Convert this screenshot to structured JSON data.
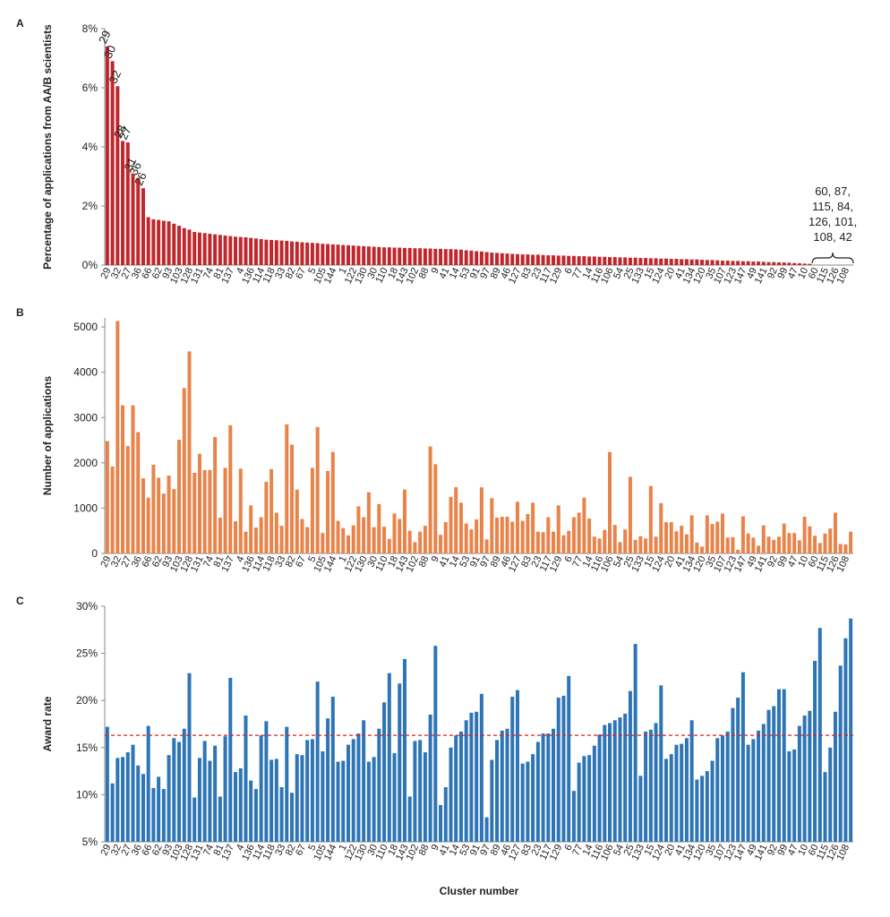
{
  "chart_data": [
    {
      "type": "bar",
      "label": "A",
      "y_label": "Percentage of applications from AA/B scientists",
      "color": "#c0272d",
      "categories": [
        "29",
        null,
        "32",
        null,
        "27",
        null,
        "36",
        null,
        "66",
        null,
        "62",
        null,
        "93",
        null,
        "103",
        null,
        "128",
        null,
        "131",
        null,
        "74",
        null,
        "81",
        null,
        "137",
        null,
        "4",
        null,
        "136",
        null,
        "114",
        null,
        "118",
        null,
        "33",
        null,
        "82",
        null,
        "67",
        null,
        "5",
        null,
        "105",
        null,
        "144",
        null,
        "1",
        null,
        "122",
        null,
        "130",
        null,
        "30",
        null,
        "110",
        null,
        "18",
        null,
        "143",
        null,
        "102",
        null,
        "88",
        null,
        "9",
        null,
        "41",
        null,
        "14",
        null,
        "53",
        null,
        "91",
        null,
        "97",
        null,
        "89",
        null,
        "46",
        null,
        "127",
        null,
        "83",
        null,
        "23",
        null,
        "117",
        null,
        "129",
        null,
        "6",
        null,
        "77",
        null,
        "14",
        null,
        "116",
        null,
        "106",
        null,
        "54",
        null,
        "25",
        null,
        "133",
        null,
        "15",
        null,
        "124",
        null,
        "20",
        null,
        "41",
        null,
        "134",
        null,
        "120",
        null,
        "35",
        null,
        "107",
        null,
        "123",
        null,
        "147",
        null,
        "49",
        null,
        "141",
        null,
        "92",
        null,
        "99",
        null,
        "47",
        null,
        "10",
        null,
        "60",
        null,
        "115",
        null,
        "126",
        null,
        "108",
        null
      ],
      "values": [
        7.4,
        6.9,
        6.05,
        4.2,
        4.15,
        3.1,
        2.95,
        2.6,
        1.62,
        1.55,
        1.53,
        1.5,
        1.48,
        1.4,
        1.33,
        1.25,
        1.2,
        1.12,
        1.1,
        1.08,
        1.06,
        1.04,
        1.02,
        1.0,
        0.98,
        0.96,
        0.95,
        0.94,
        0.92,
        0.9,
        0.88,
        0.86,
        0.85,
        0.84,
        0.83,
        0.82,
        0.8,
        0.79,
        0.77,
        0.76,
        0.75,
        0.74,
        0.72,
        0.71,
        0.7,
        0.69,
        0.68,
        0.67,
        0.66,
        0.65,
        0.64,
        0.63,
        0.62,
        0.61,
        0.6,
        0.6,
        0.59,
        0.59,
        0.58,
        0.58,
        0.57,
        0.57,
        0.56,
        0.56,
        0.55,
        0.55,
        0.54,
        0.54,
        0.53,
        0.52,
        0.5,
        0.49,
        0.47,
        0.46,
        0.44,
        0.42,
        0.41,
        0.4,
        0.39,
        0.38,
        0.37,
        0.36,
        0.36,
        0.35,
        0.35,
        0.34,
        0.33,
        0.33,
        0.32,
        0.32,
        0.31,
        0.31,
        0.3,
        0.3,
        0.29,
        0.29,
        0.28,
        0.28,
        0.27,
        0.27,
        0.26,
        0.26,
        0.25,
        0.25,
        0.24,
        0.24,
        0.23,
        0.23,
        0.22,
        0.22,
        0.21,
        0.21,
        0.2,
        0.2,
        0.19,
        0.19,
        0.18,
        0.17,
        0.17,
        0.16,
        0.15,
        0.15,
        0.14,
        0.14,
        0.13,
        0.13,
        0.12,
        0.12,
        0.11,
        0.1,
        0.1,
        0.09,
        0.09,
        0.08,
        0.07,
        0.06,
        0.05,
        0.04,
        0,
        0,
        0,
        0,
        0,
        0,
        0,
        0
      ],
      "bar_labels": [
        {
          "index": 0,
          "label": "29"
        },
        {
          "index": 1,
          "label": "30"
        },
        {
          "index": 2,
          "label": "32"
        },
        {
          "index": 3,
          "label": "28"
        },
        {
          "index": 4,
          "label": "27"
        },
        {
          "index": 5,
          "label": "31"
        },
        {
          "index": 6,
          "label": "36"
        },
        {
          "index": 7,
          "label": "26"
        }
      ],
      "annotation": [
        "60, 87,",
        "115, 84,",
        "126, 101,",
        "108, 42"
      ],
      "ylim": [
        0,
        8
      ],
      "yticks": [
        {
          "value": 0,
          "label": "0%"
        },
        {
          "value": 2,
          "label": "2%"
        },
        {
          "value": 4,
          "label": "4%"
        },
        {
          "value": 6,
          "label": "6%"
        },
        {
          "value": 8,
          "label": "8%"
        }
      ]
    },
    {
      "type": "bar",
      "label": "B",
      "y_label": "Number of applications",
      "color": "#e8834a",
      "categories": [
        "29",
        null,
        "32",
        null,
        "27",
        null,
        "36",
        null,
        "66",
        null,
        "62",
        null,
        "93",
        null,
        "103",
        null,
        "128",
        null,
        "131",
        null,
        "74",
        null,
        "81",
        null,
        "137",
        null,
        "4",
        null,
        "136",
        null,
        "114",
        null,
        "118",
        null,
        "33",
        null,
        "82",
        null,
        "67",
        null,
        "5",
        null,
        "105",
        null,
        "144",
        null,
        "1",
        null,
        "122",
        null,
        "130",
        null,
        "30",
        null,
        "110",
        null,
        "18",
        null,
        "143",
        null,
        "102",
        null,
        "88",
        null,
        "9",
        null,
        "41",
        null,
        "14",
        null,
        "53",
        null,
        "91",
        null,
        "97",
        null,
        "89",
        null,
        "46",
        null,
        "127",
        null,
        "83",
        null,
        "23",
        null,
        "117",
        null,
        "129",
        null,
        "6",
        null,
        "77",
        null,
        "14",
        null,
        "116",
        null,
        "106",
        null,
        "54",
        null,
        "25",
        null,
        "133",
        null,
        "15",
        null,
        "124",
        null,
        "20",
        null,
        "41",
        null,
        "134",
        null,
        "120",
        null,
        "35",
        null,
        "107",
        null,
        "123",
        null,
        "147",
        null,
        "49",
        null,
        "141",
        null,
        "92",
        null,
        "99",
        null,
        "47",
        null,
        "10",
        null,
        "60",
        null,
        "115",
        null,
        "126",
        null,
        "108",
        null
      ],
      "values": [
        2480,
        1920,
        5130,
        3270,
        2370,
        3270,
        2680,
        1660,
        1230,
        1960,
        1670,
        1320,
        1720,
        1420,
        2510,
        3650,
        4460,
        1780,
        2200,
        1840,
        1840,
        2570,
        790,
        1890,
        2830,
        710,
        1870,
        480,
        1060,
        570,
        800,
        1580,
        1860,
        900,
        610,
        2850,
        2400,
        1410,
        760,
        580,
        1890,
        2790,
        450,
        1820,
        2240,
        720,
        560,
        400,
        620,
        1040,
        800,
        1350,
        580,
        1090,
        590,
        320,
        880,
        760,
        1410,
        500,
        250,
        480,
        610,
        2360,
        1970,
        410,
        690,
        1250,
        1460,
        1120,
        660,
        530,
        750,
        1460,
        310,
        1220,
        790,
        810,
        810,
        700,
        1140,
        720,
        870,
        1120,
        480,
        470,
        800,
        480,
        1060,
        400,
        500,
        800,
        900,
        1230,
        770,
        370,
        330,
        520,
        2240,
        630,
        250,
        530,
        1690,
        300,
        380,
        330,
        1490,
        370,
        1110,
        690,
        690,
        490,
        610,
        420,
        840,
        240,
        150,
        840,
        650,
        700,
        880,
        350,
        360,
        80,
        820,
        440,
        350,
        170,
        620,
        370,
        300,
        370,
        660,
        450,
        450,
        290,
        810,
        600,
        390,
        230,
        440,
        550,
        900,
        210,
        200,
        480
      ],
      "ylim": [
        0,
        5200
      ],
      "yticks": [
        0,
        1000,
        2000,
        3000,
        4000,
        5000
      ]
    },
    {
      "type": "bar",
      "label": "C",
      "y_label": "Award rate",
      "x_label": "Cluster number",
      "color": "#2e75b6",
      "reference_line": 16.3,
      "reference_color": "#e0201b",
      "categories": [
        "29",
        null,
        "32",
        null,
        "27",
        null,
        "36",
        null,
        "66",
        null,
        "62",
        null,
        "93",
        null,
        "103",
        null,
        "128",
        null,
        "131",
        null,
        "74",
        null,
        "81",
        null,
        "137",
        null,
        "4",
        null,
        "136",
        null,
        "114",
        null,
        "118",
        null,
        "33",
        null,
        "82",
        null,
        "67",
        null,
        "5",
        null,
        "105",
        null,
        "144",
        null,
        "1",
        null,
        "122",
        null,
        "130",
        null,
        "30",
        null,
        "110",
        null,
        "18",
        null,
        "143",
        null,
        "102",
        null,
        "88",
        null,
        "9",
        null,
        "41",
        null,
        "14",
        null,
        "53",
        null,
        "91",
        null,
        "97",
        null,
        "89",
        null,
        "46",
        null,
        "127",
        null,
        "83",
        null,
        "23",
        null,
        "117",
        null,
        "129",
        null,
        "6",
        null,
        "77",
        null,
        "14",
        null,
        "116",
        null,
        "106",
        null,
        "54",
        null,
        "25",
        null,
        "133",
        null,
        "15",
        null,
        "124",
        null,
        "20",
        null,
        "41",
        null,
        "134",
        null,
        "120",
        null,
        "35",
        null,
        "107",
        null,
        "123",
        null,
        "147",
        null,
        "49",
        null,
        "141",
        null,
        "92",
        null,
        "99",
        null,
        "47",
        null,
        "10",
        null,
        "60",
        null,
        "115",
        null,
        "126",
        null,
        "108",
        null
      ],
      "values": [
        17.2,
        11.2,
        13.9,
        14.0,
        14.5,
        15.3,
        13.1,
        12.2,
        17.3,
        10.7,
        11.9,
        10.6,
        14.2,
        16.0,
        15.6,
        17.0,
        22.9,
        9.7,
        13.9,
        15.7,
        13.6,
        15.2,
        9.8,
        16.2,
        22.4,
        12.4,
        12.8,
        18.4,
        11.5,
        10.6,
        16.3,
        17.8,
        13.7,
        13.8,
        10.8,
        17.2,
        10.2,
        14.3,
        14.2,
        15.8,
        15.9,
        22.0,
        14.6,
        18.1,
        20.4,
        13.5,
        13.6,
        15.3,
        15.9,
        16.5,
        17.9,
        13.5,
        14.0,
        17.0,
        19.8,
        22.9,
        14.4,
        21.8,
        24.4,
        9.8,
        15.7,
        15.8,
        14.5,
        18.5,
        25.8,
        8.9,
        10.8,
        15.0,
        16.3,
        16.7,
        17.9,
        18.7,
        18.8,
        20.7,
        7.6,
        13.7,
        15.8,
        16.8,
        17.0,
        20.4,
        21.1,
        13.3,
        13.5,
        14.3,
        15.6,
        16.5,
        16.5,
        17.0,
        20.3,
        20.5,
        22.6,
        10.4,
        13.4,
        14.1,
        14.2,
        15.2,
        16.4,
        17.4,
        17.6,
        17.9,
        18.2,
        18.6,
        21.0,
        26.0,
        12.0,
        16.7,
        16.9,
        17.6,
        21.6,
        13.8,
        14.3,
        15.3,
        15.4,
        16.0,
        17.9,
        11.6,
        12.0,
        12.5,
        13.6,
        16.0,
        16.3,
        16.7,
        19.2,
        20.3,
        23.0,
        15.3,
        15.9,
        16.8,
        17.5,
        19.0,
        19.4,
        21.2,
        21.2,
        14.6,
        14.8,
        17.3,
        18.4,
        18.9,
        24.2,
        27.7,
        12.4,
        15.0,
        18.8,
        23.7,
        26.6,
        28.7
      ],
      "ylim": [
        5,
        30
      ],
      "yticks": [
        {
          "value": 5,
          "label": "5%"
        },
        {
          "value": 10,
          "label": "10%"
        },
        {
          "value": 15,
          "label": "15%"
        },
        {
          "value": 20,
          "label": "20%"
        },
        {
          "value": 25,
          "label": "25%"
        },
        {
          "value": 30,
          "label": "30%"
        }
      ]
    }
  ]
}
